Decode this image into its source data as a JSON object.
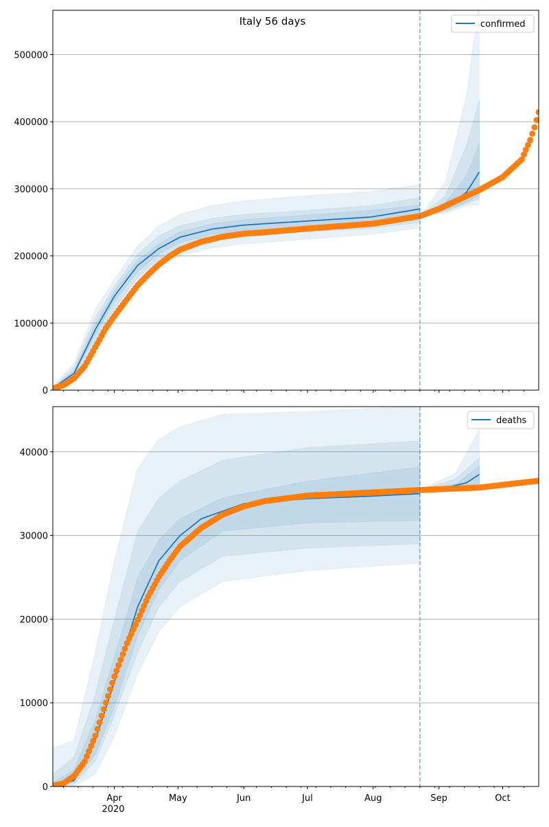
{
  "chart_data": [
    {
      "type": "line",
      "title": "Italy 56 days",
      "legend": {
        "label": "confirmed",
        "placement": "top-right"
      },
      "x_unit": "days since 2020-03-03",
      "xlim": [
        0,
        229
      ],
      "x_ticks": [
        {
          "day": 29,
          "label": "Apr"
        },
        {
          "day": 59,
          "label": "May"
        },
        {
          "day": 90,
          "label": "Jun"
        },
        {
          "day": 120,
          "label": "Jul"
        },
        {
          "day": 151,
          "label": "Aug"
        },
        {
          "day": 182,
          "label": "Sep"
        },
        {
          "day": 212,
          "label": "Oct"
        }
      ],
      "ylim": [
        0,
        566000
      ],
      "y_ticks": [
        0,
        100000,
        200000,
        300000,
        400000,
        500000
      ],
      "grid": "horizontal",
      "forecast_start_day": 173,
      "observed": [
        [
          0,
          2502
        ],
        [
          5,
          7375
        ],
        [
          10,
          17660
        ],
        [
          15,
          35713
        ],
        [
          20,
          63927
        ],
        [
          25,
          92472
        ],
        [
          29,
          110574
        ],
        [
          35,
          135586
        ],
        [
          40,
          156363
        ],
        [
          45,
          172434
        ],
        [
          50,
          187327
        ],
        [
          55,
          199414
        ],
        [
          60,
          209328
        ],
        [
          70,
          221216
        ],
        [
          80,
          228658
        ],
        [
          90,
          233019
        ],
        [
          100,
          235278
        ],
        [
          120,
          240760
        ],
        [
          151,
          248070
        ],
        [
          173,
          259345
        ],
        [
          182,
          270189
        ],
        [
          201,
          298156
        ],
        [
          212,
          317409
        ],
        [
          221,
          343770
        ],
        [
          225,
          372799
        ],
        [
          227,
          391611
        ],
        [
          228,
          402536
        ],
        [
          229,
          414241
        ]
      ],
      "fit_median": [
        [
          0,
          3000
        ],
        [
          10,
          25000
        ],
        [
          20,
          90000
        ],
        [
          29,
          140000
        ],
        [
          40,
          186000
        ],
        [
          50,
          211000
        ],
        [
          60,
          228000
        ],
        [
          75,
          240000
        ],
        [
          90,
          246000
        ],
        [
          120,
          252000
        ],
        [
          150,
          258000
        ],
        [
          173,
          270000
        ]
      ],
      "fit_bands": [
        [
          [
            0,
            0,
            6000
          ],
          [
            10,
            12000,
            40000
          ],
          [
            20,
            60000,
            120000
          ],
          [
            29,
            110000,
            165000
          ],
          [
            40,
            155000,
            215000
          ],
          [
            50,
            185000,
            245000
          ],
          [
            60,
            200000,
            262000
          ],
          [
            75,
            212000,
            275000
          ],
          [
            90,
            218000,
            282000
          ],
          [
            120,
            225000,
            290000
          ],
          [
            150,
            232000,
            296000
          ],
          [
            173,
            242000,
            306000
          ]
        ],
        [
          [
            0,
            500,
            4500
          ],
          [
            10,
            18000,
            34000
          ],
          [
            20,
            72000,
            108000
          ],
          [
            29,
            122000,
            155000
          ],
          [
            40,
            168000,
            203000
          ],
          [
            50,
            196000,
            230000
          ],
          [
            60,
            212000,
            245000
          ],
          [
            75,
            224000,
            256000
          ],
          [
            90,
            230000,
            262000
          ],
          [
            120,
            236000,
            268000
          ],
          [
            150,
            241000,
            275000
          ],
          [
            173,
            250000,
            287000
          ]
        ],
        [
          [
            0,
            1500,
            3500
          ],
          [
            10,
            22000,
            29000
          ],
          [
            20,
            82000,
            98000
          ],
          [
            29,
            132000,
            148000
          ],
          [
            40,
            177000,
            194000
          ],
          [
            50,
            203000,
            218000
          ],
          [
            60,
            220000,
            236000
          ],
          [
            75,
            232000,
            248000
          ],
          [
            90,
            238000,
            254000
          ],
          [
            120,
            243000,
            261000
          ],
          [
            150,
            248000,
            268000
          ],
          [
            173,
            256000,
            276000
          ]
        ]
      ],
      "forecast_median": [
        [
          173,
          259000
        ],
        [
          185,
          272000
        ],
        [
          195,
          295000
        ],
        [
          201,
          325000
        ]
      ],
      "forecast_bands": [
        [
          [
            173,
            259000,
            259000
          ],
          [
            185,
            263000,
            310000
          ],
          [
            195,
            275000,
            440000
          ],
          [
            201,
            276000,
            580000
          ]
        ],
        [
          [
            173,
            259000,
            259000
          ],
          [
            185,
            266000,
            290000
          ],
          [
            195,
            278000,
            365000
          ],
          [
            201,
            285000,
            432000
          ]
        ],
        [
          [
            173,
            259000,
            259000
          ],
          [
            185,
            268000,
            280000
          ],
          [
            195,
            280000,
            320000
          ],
          [
            201,
            290000,
            368000
          ]
        ]
      ]
    },
    {
      "type": "line",
      "legend": {
        "label": "deaths",
        "placement": "top-right"
      },
      "x_unit": "days since 2020-03-03",
      "xlim": [
        0,
        229
      ],
      "x_ticks": [
        {
          "day": 29,
          "label": "Apr"
        },
        {
          "day": 59,
          "label": "May"
        },
        {
          "day": 90,
          "label": "Jun"
        },
        {
          "day": 120,
          "label": "Jul"
        },
        {
          "day": 151,
          "label": "Aug"
        },
        {
          "day": 182,
          "label": "Sep"
        },
        {
          "day": 212,
          "label": "Oct"
        }
      ],
      "x_year_label": "2020",
      "ylim": [
        0,
        45400
      ],
      "y_ticks": [
        0,
        10000,
        20000,
        30000,
        40000
      ],
      "grid": "horizontal",
      "forecast_start_day": 173,
      "observed": [
        [
          0,
          79
        ],
        [
          5,
          366
        ],
        [
          10,
          1266
        ],
        [
          15,
          2978
        ],
        [
          20,
          6077
        ],
        [
          25,
          10023
        ],
        [
          29,
          13155
        ],
        [
          35,
          17127
        ],
        [
          40,
          19899
        ],
        [
          45,
          22745
        ],
        [
          50,
          25085
        ],
        [
          55,
          26977
        ],
        [
          60,
          28710
        ],
        [
          70,
          30911
        ],
        [
          80,
          32486
        ],
        [
          90,
          33475
        ],
        [
          100,
          34114
        ],
        [
          120,
          34767
        ],
        [
          151,
          35146
        ],
        [
          173,
          35437
        ],
        [
          201,
          35724
        ],
        [
          229,
          36543
        ]
      ],
      "fit_median": [
        [
          0,
          100
        ],
        [
          10,
          700
        ],
        [
          20,
          5500
        ],
        [
          29,
          12500
        ],
        [
          40,
          21500
        ],
        [
          50,
          27000
        ],
        [
          60,
          30000
        ],
        [
          70,
          32000
        ],
        [
          90,
          33800
        ],
        [
          120,
          34400
        ],
        [
          150,
          34700
        ],
        [
          173,
          35000
        ]
      ],
      "fit_bands": [
        [
          [
            0,
            0,
            4600
          ],
          [
            10,
            0,
            5500
          ],
          [
            20,
            1500,
            16000
          ],
          [
            29,
            6000,
            27000
          ],
          [
            40,
            13500,
            38000
          ],
          [
            50,
            18500,
            41500
          ],
          [
            60,
            21500,
            43000
          ],
          [
            80,
            24500,
            44500
          ],
          [
            120,
            25800,
            44800
          ],
          [
            173,
            26700,
            45500
          ]
        ],
        [
          [
            0,
            0,
            1500
          ],
          [
            10,
            300,
            3500
          ],
          [
            20,
            3000,
            11000
          ],
          [
            29,
            8500,
            20000
          ],
          [
            40,
            16000,
            30500
          ],
          [
            50,
            21500,
            34500
          ],
          [
            60,
            24500,
            36500
          ],
          [
            80,
            27500,
            39000
          ],
          [
            120,
            28500,
            40500
          ],
          [
            173,
            29000,
            41300
          ]
        ],
        [
          [
            0,
            0,
            500
          ],
          [
            10,
            600,
            2000
          ],
          [
            20,
            3800,
            8000
          ],
          [
            29,
            9500,
            15500
          ],
          [
            40,
            18000,
            25000
          ],
          [
            50,
            23500,
            29500
          ],
          [
            60,
            27000,
            32000
          ],
          [
            80,
            30500,
            34500
          ],
          [
            120,
            31500,
            36500
          ],
          [
            173,
            31800,
            38200
          ]
        ]
      ],
      "forecast_median": [
        [
          173,
          35400
        ],
        [
          185,
          35700
        ],
        [
          195,
          36300
        ],
        [
          201,
          37300
        ]
      ],
      "forecast_bands": [
        [
          [
            173,
            35400,
            35400
          ],
          [
            190,
            35400,
            37500
          ],
          [
            201,
            35400,
            42700
          ]
        ],
        [
          [
            173,
            35400,
            35400
          ],
          [
            190,
            35500,
            36800
          ],
          [
            201,
            35600,
            39300
          ]
        ],
        [
          [
            173,
            35400,
            35400
          ],
          [
            190,
            35500,
            36200
          ],
          [
            201,
            35800,
            38300
          ]
        ]
      ]
    }
  ],
  "colors": {
    "fit": "#1f77b4",
    "observed": "#ff7f0e",
    "band": "#1f77b4"
  }
}
